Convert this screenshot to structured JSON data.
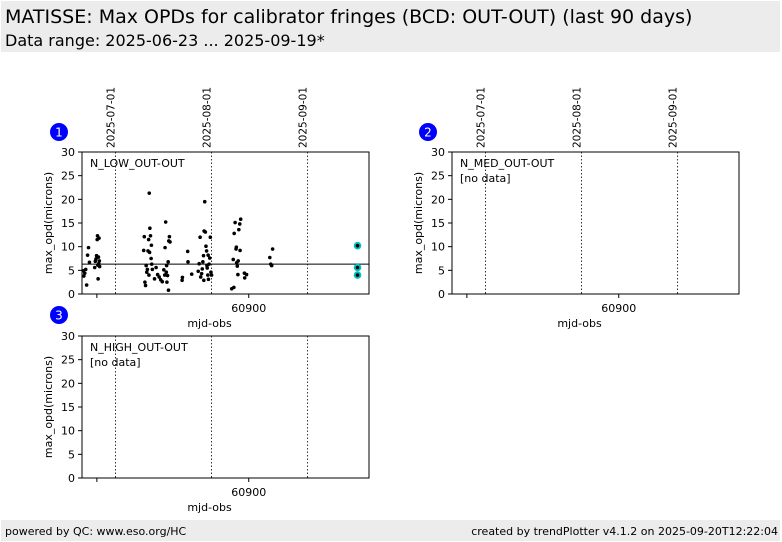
{
  "header": {
    "title": "MATISSE: Max OPDs for calibrator fringes (BCD: OUT-OUT) (last 90 days)",
    "subtitle": "Data range: 2025-06-23 ... 2025-09-19*"
  },
  "footer": {
    "left": "powered by QC: www.eso.org/HC",
    "right": "created by trendPlotter v4.1.2 on 2025-09-20T12:22:04"
  },
  "colors": {
    "header_bg": "#ececec",
    "badge": "#0000ff",
    "points": "#000000",
    "latest_highlight": "#00c0c0"
  },
  "chart_data": [
    {
      "type": "scatter",
      "panel": "1",
      "label": "N_LOW_OUT-OUT",
      "note": "",
      "xlabel": "mjd-obs",
      "ylabel": "max_opd(microns)",
      "ylim": [
        0,
        30
      ],
      "yticks": [
        0,
        5,
        10,
        15,
        20,
        25,
        30
      ],
      "xlim": [
        60846.2,
        60938.8
      ],
      "xticks": [
        {
          "value": 60851,
          "label": ""
        },
        {
          "value": 60900,
          "label": "60900"
        }
      ],
      "date_markers": [
        {
          "mjd": 60857,
          "label": "2025-07-01"
        },
        {
          "mjd": 60888,
          "label": "2025-08-01"
        },
        {
          "mjd": 60919,
          "label": "2025-09-01"
        }
      ],
      "average": 6.3,
      "grid": false,
      "points": [
        [
          60846.6,
          4.9
        ],
        [
          60846.8,
          3.8
        ],
        [
          60847.1,
          4.4
        ],
        [
          60847.4,
          5.2
        ],
        [
          60847.7,
          1.9
        ],
        [
          60848.0,
          8.2
        ],
        [
          60848.3,
          9.8
        ],
        [
          60848.6,
          6.7
        ],
        [
          60850.3,
          5.6
        ],
        [
          60850.5,
          6.9
        ],
        [
          60850.7,
          7.4
        ],
        [
          60850.9,
          8.1
        ],
        [
          60851.1,
          11.5
        ],
        [
          60851.2,
          12.3
        ],
        [
          60851.3,
          6.1
        ],
        [
          60851.4,
          3.2
        ],
        [
          60851.5,
          7.8
        ],
        [
          60851.6,
          6.4
        ],
        [
          60851.7,
          11.8
        ],
        [
          60851.8,
          7.0
        ],
        [
          60851.9,
          5.8
        ],
        [
          60866.1,
          9.2
        ],
        [
          60866.3,
          12.1
        ],
        [
          60866.5,
          2.5
        ],
        [
          60866.7,
          1.8
        ],
        [
          60866.9,
          6.0
        ],
        [
          60867.1,
          4.6
        ],
        [
          60867.3,
          5.2
        ],
        [
          60867.5,
          9.1
        ],
        [
          60867.7,
          11.5
        ],
        [
          60867.9,
          21.3
        ],
        [
          60868.1,
          13.9
        ],
        [
          60868.3,
          12.3
        ],
        [
          60868.5,
          7.5
        ],
        [
          60868.7,
          6.3
        ],
        [
          60868.9,
          5.2
        ],
        [
          60867.8,
          4.0
        ],
        [
          60868.6,
          10.3
        ],
        [
          60868.0,
          8.8
        ],
        [
          60869.6,
          3.2
        ],
        [
          60870.1,
          5.6
        ],
        [
          60870.6,
          4.1
        ],
        [
          60871.1,
          3.6
        ],
        [
          60871.6,
          3.0
        ],
        [
          60872.1,
          2.6
        ],
        [
          60872.6,
          5.1
        ],
        [
          60873.0,
          9.8
        ],
        [
          60873.2,
          15.2
        ],
        [
          60873.4,
          4.6
        ],
        [
          60873.6,
          2.5
        ],
        [
          60873.8,
          3.9
        ],
        [
          60874.0,
          6.8
        ],
        [
          60874.2,
          11.2
        ],
        [
          60874.4,
          12.1
        ],
        [
          60873.5,
          6.0
        ],
        [
          60874.1,
          0.8
        ],
        [
          60874.6,
          11.0
        ],
        [
          60872.9,
          4.0
        ],
        [
          60878.5,
          2.9
        ],
        [
          60878.6,
          3.5
        ],
        [
          60880.3,
          9.0
        ],
        [
          60880.4,
          6.8
        ],
        [
          60881.6,
          4.2
        ],
        [
          60883.7,
          4.8
        ],
        [
          60884.0,
          6.4
        ],
        [
          60884.3,
          12.0
        ],
        [
          60884.5,
          3.6
        ],
        [
          60884.8,
          4.3
        ],
        [
          60885.0,
          5.3
        ],
        [
          60885.2,
          6.8
        ],
        [
          60885.4,
          8.1
        ],
        [
          60885.6,
          13.3
        ],
        [
          60885.8,
          19.5
        ],
        [
          60886.0,
          13.1
        ],
        [
          60886.2,
          10.1
        ],
        [
          60886.4,
          9.1
        ],
        [
          60886.6,
          5.5
        ],
        [
          60886.8,
          4.0
        ],
        [
          60887.0,
          3.1
        ],
        [
          60887.2,
          6.3
        ],
        [
          60887.4,
          7.6
        ],
        [
          60887.6,
          12.0
        ],
        [
          60887.8,
          4.6
        ],
        [
          60888.0,
          4.0
        ],
        [
          60885.5,
          2.9
        ],
        [
          60886.5,
          6.0
        ],
        [
          60886.9,
          8.2
        ],
        [
          60894.5,
          1.1
        ],
        [
          60895.0,
          7.3
        ],
        [
          60895.3,
          12.8
        ],
        [
          60895.6,
          15.1
        ],
        [
          60895.9,
          9.5
        ],
        [
          60896.1,
          6.6
        ],
        [
          60896.3,
          5.9
        ],
        [
          60896.5,
          4.1
        ],
        [
          60896.8,
          13.6
        ],
        [
          60897.1,
          14.8
        ],
        [
          60897.4,
          15.8
        ],
        [
          60895.2,
          1.4
        ],
        [
          60896.0,
          9.9
        ],
        [
          60896.6,
          7.0
        ],
        [
          60897.2,
          9.2
        ],
        [
          60898.6,
          4.4
        ],
        [
          60898.7,
          3.4
        ],
        [
          60899.3,
          4.1
        ],
        [
          60906.8,
          7.7
        ],
        [
          60907.1,
          6.3
        ],
        [
          60907.4,
          6.0
        ],
        [
          60907.7,
          9.5
        ]
      ],
      "latest_points": [
        [
          60935.1,
          10.2
        ],
        [
          60935.1,
          5.6
        ],
        [
          60935.1,
          4.0
        ]
      ]
    },
    {
      "type": "scatter",
      "panel": "2",
      "label": "N_MED_OUT-OUT",
      "note": "[no data]",
      "xlabel": "mjd-obs",
      "ylabel": "max_opd(microns)",
      "ylim": [
        0,
        30
      ],
      "yticks": [
        0,
        5,
        10,
        15,
        20,
        25,
        30
      ],
      "xlim": [
        60846.2,
        60938.8
      ],
      "xticks": [
        {
          "value": 60851,
          "label": ""
        },
        {
          "value": 60900,
          "label": "60900"
        }
      ],
      "date_markers": [
        {
          "mjd": 60857,
          "label": "2025-07-01"
        },
        {
          "mjd": 60888,
          "label": "2025-08-01"
        },
        {
          "mjd": 60919,
          "label": "2025-09-01"
        }
      ],
      "grid": false,
      "points": [],
      "latest_points": []
    },
    {
      "type": "scatter",
      "panel": "3",
      "label": "N_HIGH_OUT-OUT",
      "note": "[no data]",
      "xlabel": "mjd-obs",
      "ylabel": "max_opd(microns)",
      "ylim": [
        0,
        30
      ],
      "yticks": [
        0,
        5,
        10,
        15,
        20,
        25,
        30
      ],
      "xlim": [
        60846.2,
        60938.8
      ],
      "xticks": [
        {
          "value": 60851,
          "label": ""
        },
        {
          "value": 60900,
          "label": "60900"
        }
      ],
      "date_markers": [
        {
          "mjd": 60857,
          "label": ""
        },
        {
          "mjd": 60888,
          "label": ""
        },
        {
          "mjd": 60919,
          "label": ""
        }
      ],
      "grid": false,
      "points": [],
      "latest_points": []
    }
  ]
}
